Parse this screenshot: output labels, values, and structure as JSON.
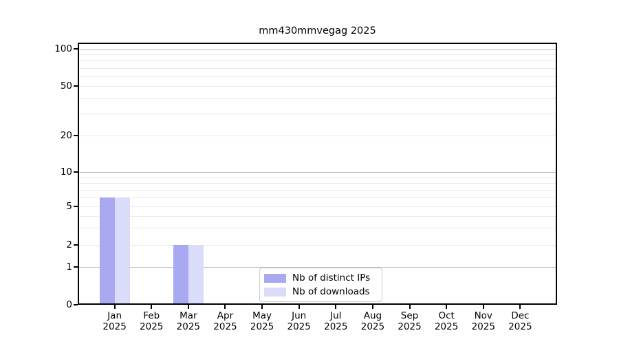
{
  "colors": {
    "bar_distinct_ips": "#a9a9f2",
    "bar_downloads": "#dbdbfa",
    "grid_major": "#b9b9b9",
    "grid_minor": "#e9e9e9",
    "axis": "#000000",
    "legend_border": "#cccccc",
    "text": "#000000",
    "background": "#ffffff"
  },
  "chart_data": {
    "type": "bar",
    "title": "mm430mmvegag 2025",
    "year": "2025",
    "months": [
      "Jan",
      "Feb",
      "Mar",
      "Apr",
      "May",
      "Jun",
      "Jul",
      "Aug",
      "Sep",
      "Oct",
      "Nov",
      "Dec"
    ],
    "series": [
      {
        "name": "Nb of distinct IPs",
        "color": "#a9a9f2",
        "values": [
          6,
          0,
          2,
          0,
          0,
          0,
          0,
          0,
          0,
          0,
          0,
          0
        ]
      },
      {
        "name": "Nb of downloads",
        "color": "#dbdbfa",
        "values": [
          6,
          0,
          2,
          0,
          0,
          0,
          0,
          0,
          0,
          0,
          0,
          0
        ]
      }
    ],
    "y_axis": {
      "scale": "symlog",
      "tick_values": [
        100,
        50,
        20,
        10,
        5,
        2,
        1,
        0
      ],
      "major_gridlines": [
        1,
        10,
        100
      ],
      "minor_gridlines": [
        2,
        3,
        4,
        5,
        6,
        7,
        8,
        9,
        20,
        30,
        40,
        50,
        60,
        70,
        80,
        90
      ],
      "range": [
        0,
        120
      ]
    },
    "x_axis": {
      "tick_labels_line1": [
        "Jan",
        "Feb",
        "Mar",
        "Apr",
        "May",
        "Jun",
        "Jul",
        "Aug",
        "Sep",
        "Oct",
        "Nov",
        "Dec"
      ],
      "tick_labels_line2": "2025"
    },
    "legend": {
      "position": "lower-center",
      "entries": [
        "Nb of distinct IPs",
        "Nb of downloads"
      ]
    },
    "grid": "horizontal-only"
  }
}
